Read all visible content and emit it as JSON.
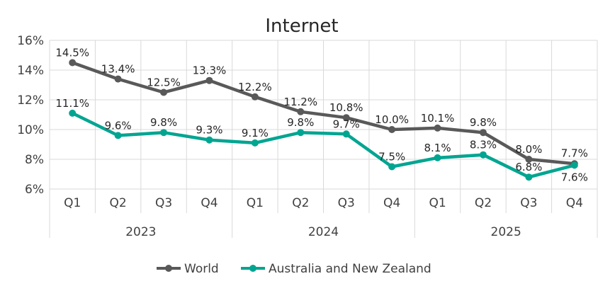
{
  "chart_data": {
    "type": "line",
    "title": "Internet",
    "categories": [
      "Q1",
      "Q2",
      "Q3",
      "Q4",
      "Q1",
      "Q2",
      "Q3",
      "Q4",
      "Q1",
      "Q2",
      "Q3",
      "Q4"
    ],
    "groups": [
      {
        "label": "2023",
        "count": 4
      },
      {
        "label": "2024",
        "count": 4
      },
      {
        "label": "2025",
        "count": 4
      }
    ],
    "ylim": [
      6,
      16
    ],
    "yticks": [
      6,
      8,
      10,
      12,
      14,
      16
    ],
    "ytick_labels": [
      "6%",
      "8%",
      "10%",
      "12%",
      "14%",
      "16%"
    ],
    "grid": true,
    "legend_position": "bottom",
    "series": [
      {
        "name": "World",
        "color": "#595959",
        "values": [
          14.5,
          13.4,
          12.5,
          13.3,
          12.2,
          11.2,
          10.8,
          10.0,
          10.1,
          9.8,
          8.0,
          7.7
        ],
        "labels": [
          "14.5%",
          "13.4%",
          "12.5%",
          "13.3%",
          "12.2%",
          "11.2%",
          "10.8%",
          "10.0%",
          "10.1%",
          "9.8%",
          "8.0%",
          "7.7%"
        ]
      },
      {
        "name": "Australia and New Zealand",
        "color": "#00A591",
        "values": [
          11.1,
          9.6,
          9.8,
          9.3,
          9.1,
          9.8,
          9.7,
          7.5,
          8.1,
          8.3,
          6.8,
          7.6
        ],
        "labels": [
          "11.1%",
          "9.6%",
          "9.8%",
          "9.3%",
          "9.1%",
          "9.8%",
          "9.7%",
          "7.5%",
          "8.1%",
          "8.3%",
          "6.8%",
          "7.6%"
        ]
      }
    ]
  }
}
